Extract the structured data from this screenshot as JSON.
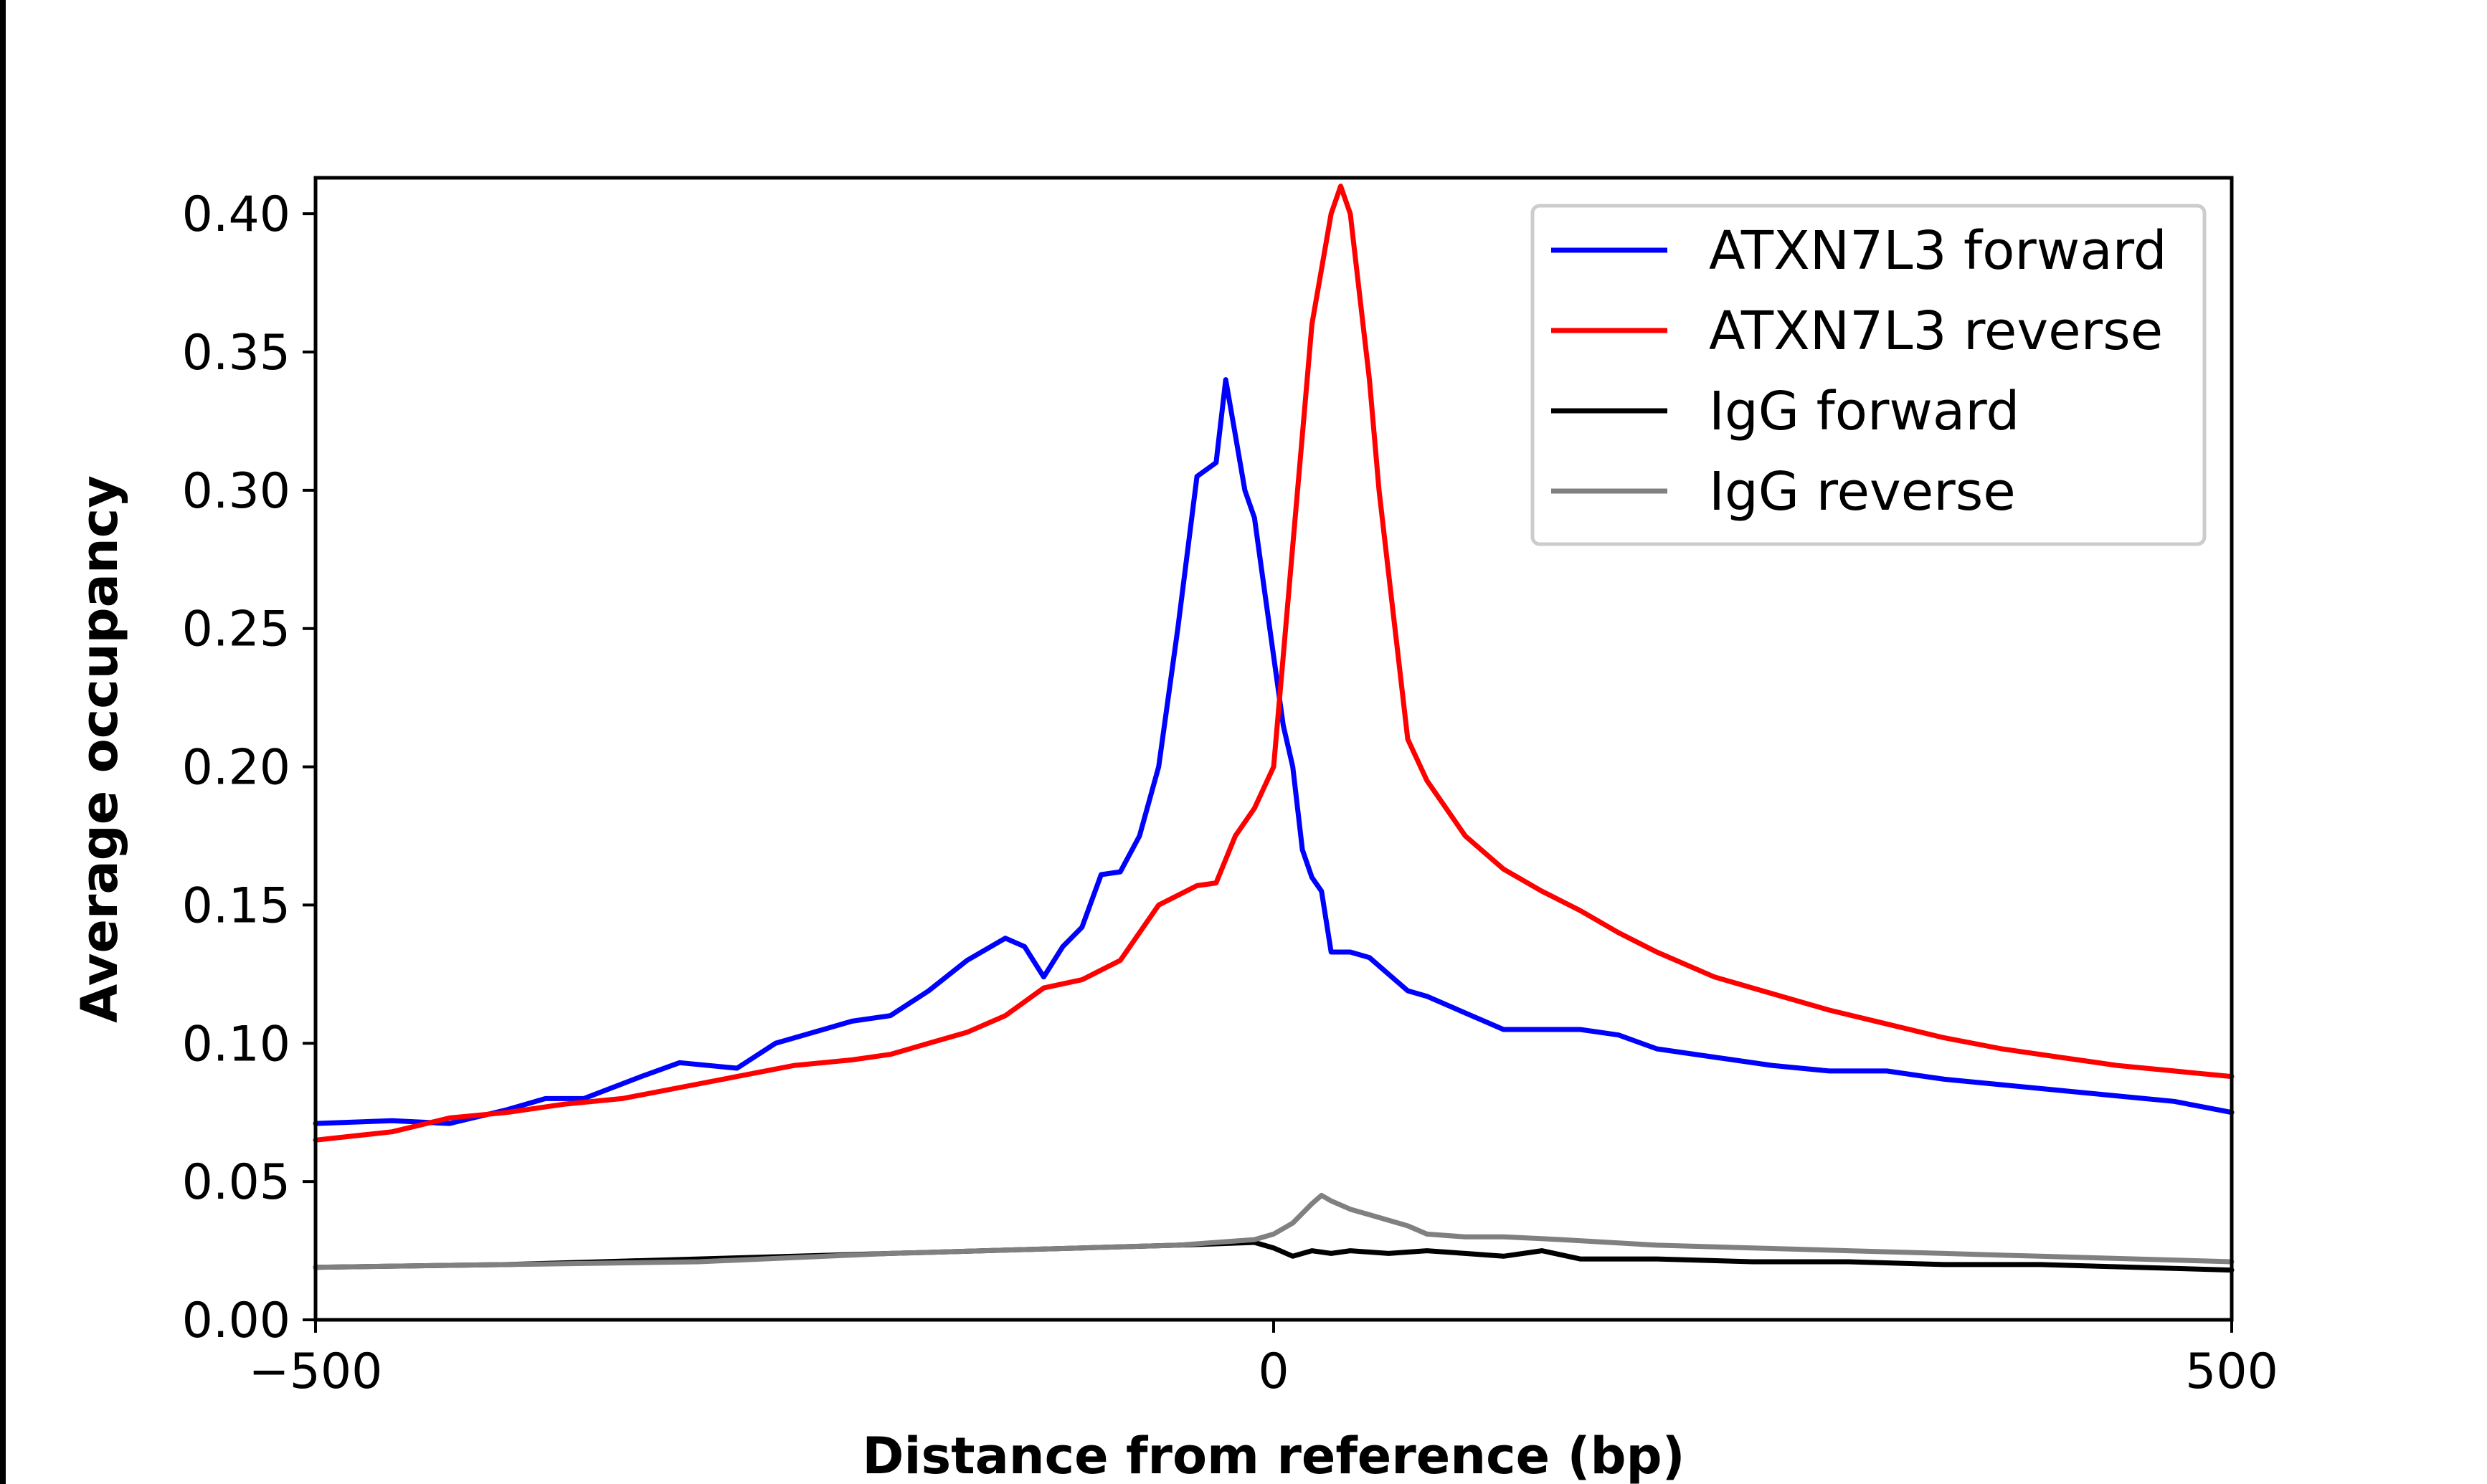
{
  "chart_data": {
    "type": "line",
    "title": "",
    "xlabel": "Distance from reference (bp)",
    "ylabel": "Average occupancy",
    "xlim": [
      -500,
      500
    ],
    "ylim": [
      0,
      0.413
    ],
    "x_ticks": [
      -500,
      0,
      500
    ],
    "x_tick_labels": [
      "−500",
      "0",
      "500"
    ],
    "y_ticks": [
      0,
      0.05,
      0.1,
      0.15,
      0.2,
      0.25,
      0.3,
      0.35,
      0.4
    ],
    "y_tick_labels": [
      "0.00",
      "0.05",
      "0.10",
      "0.15",
      "0.20",
      "0.25",
      "0.30",
      "0.35",
      "0.40"
    ],
    "grid": false,
    "legend_position": "top-right",
    "series": [
      {
        "name": "ATXN7L3 forward",
        "color": "#0000ff",
        "x": [
          -500,
          -460,
          -430,
          -400,
          -380,
          -360,
          -330,
          -310,
          -280,
          -260,
          -240,
          -220,
          -200,
          -180,
          -160,
          -140,
          -130,
          -120,
          -110,
          -100,
          -90,
          -80,
          -70,
          -60,
          -50,
          -40,
          -30,
          -25,
          -20,
          -15,
          -10,
          -5,
          0,
          5,
          10,
          15,
          20,
          25,
          30,
          40,
          50,
          60,
          70,
          80,
          100,
          120,
          140,
          160,
          180,
          200,
          230,
          260,
          290,
          320,
          350,
          380,
          410,
          440,
          470,
          500
        ],
        "values": [
          0.071,
          0.072,
          0.071,
          0.076,
          0.08,
          0.08,
          0.088,
          0.093,
          0.091,
          0.1,
          0.104,
          0.108,
          0.11,
          0.119,
          0.13,
          0.138,
          0.135,
          0.124,
          0.135,
          0.142,
          0.161,
          0.162,
          0.175,
          0.2,
          0.25,
          0.305,
          0.31,
          0.34,
          0.32,
          0.3,
          0.29,
          0.265,
          0.24,
          0.215,
          0.2,
          0.17,
          0.16,
          0.155,
          0.133,
          0.133,
          0.131,
          0.125,
          0.119,
          0.117,
          0.111,
          0.105,
          0.105,
          0.105,
          0.103,
          0.098,
          0.095,
          0.092,
          0.09,
          0.09,
          0.087,
          0.085,
          0.083,
          0.081,
          0.079,
          0.075
        ]
      },
      {
        "name": "ATXN7L3 reverse",
        "color": "#ff0000",
        "x": [
          -500,
          -460,
          -430,
          -400,
          -370,
          -340,
          -310,
          -280,
          -250,
          -220,
          -200,
          -180,
          -160,
          -140,
          -120,
          -100,
          -80,
          -60,
          -40,
          -30,
          -20,
          -10,
          0,
          5,
          10,
          15,
          20,
          25,
          30,
          35,
          40,
          45,
          50,
          55,
          60,
          65,
          70,
          80,
          90,
          100,
          120,
          140,
          160,
          180,
          200,
          230,
          260,
          290,
          320,
          350,
          380,
          410,
          440,
          470,
          500
        ],
        "values": [
          0.065,
          0.068,
          0.073,
          0.075,
          0.078,
          0.08,
          0.084,
          0.088,
          0.092,
          0.094,
          0.096,
          0.1,
          0.104,
          0.11,
          0.12,
          0.123,
          0.13,
          0.15,
          0.157,
          0.158,
          0.175,
          0.185,
          0.2,
          0.24,
          0.28,
          0.32,
          0.36,
          0.38,
          0.4,
          0.41,
          0.4,
          0.37,
          0.34,
          0.3,
          0.27,
          0.24,
          0.21,
          0.195,
          0.185,
          0.175,
          0.163,
          0.155,
          0.148,
          0.14,
          0.133,
          0.124,
          0.118,
          0.112,
          0.107,
          0.102,
          0.098,
          0.095,
          0.092,
          0.09,
          0.088
        ]
      },
      {
        "name": "IgG forward",
        "color": "#000000",
        "x": [
          -500,
          -400,
          -300,
          -200,
          -100,
          -50,
          -10,
          0,
          10,
          20,
          30,
          40,
          60,
          80,
          100,
          120,
          140,
          160,
          200,
          250,
          300,
          350,
          400,
          450,
          500
        ],
        "values": [
          0.019,
          0.02,
          0.022,
          0.024,
          0.026,
          0.027,
          0.028,
          0.026,
          0.023,
          0.025,
          0.024,
          0.025,
          0.024,
          0.025,
          0.024,
          0.023,
          0.025,
          0.022,
          0.022,
          0.021,
          0.021,
          0.02,
          0.02,
          0.019,
          0.018
        ]
      },
      {
        "name": "IgG reverse",
        "color": "#808080",
        "x": [
          -500,
          -400,
          -300,
          -200,
          -100,
          -50,
          -10,
          0,
          10,
          20,
          25,
          30,
          40,
          50,
          60,
          70,
          80,
          100,
          120,
          150,
          200,
          250,
          300,
          350,
          400,
          450,
          500
        ],
        "values": [
          0.019,
          0.02,
          0.021,
          0.024,
          0.026,
          0.027,
          0.029,
          0.031,
          0.035,
          0.042,
          0.045,
          0.043,
          0.04,
          0.038,
          0.036,
          0.034,
          0.031,
          0.03,
          0.03,
          0.029,
          0.027,
          0.026,
          0.025,
          0.024,
          0.023,
          0.022,
          0.021
        ]
      }
    ]
  }
}
